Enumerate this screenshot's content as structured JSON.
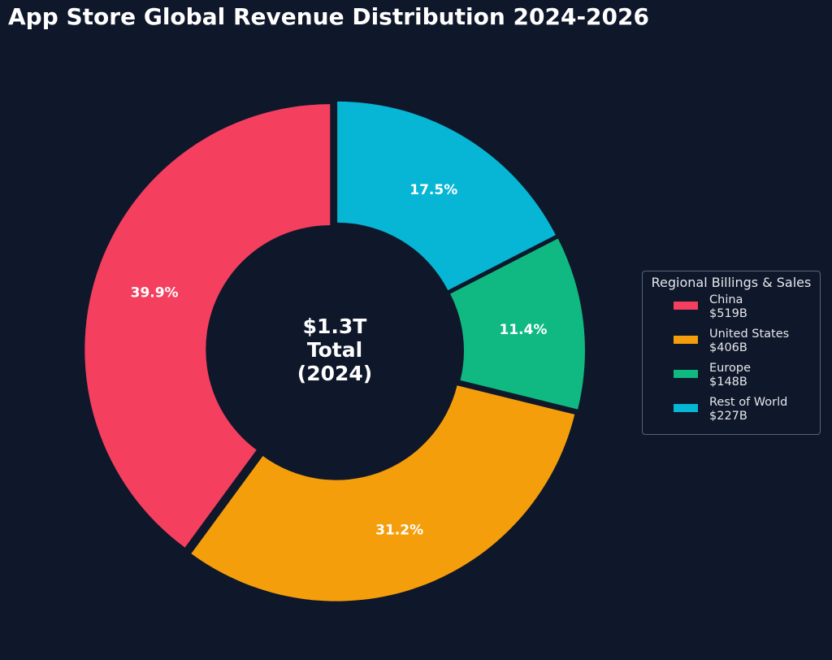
{
  "chart_data": {
    "type": "pie",
    "title": "App Store Global Revenue Distribution 2024-2026",
    "center_label": [
      "$1.3T",
      "Total",
      "(2024)"
    ],
    "legend": {
      "title": "Regional Billings & Sales",
      "placement": "right"
    },
    "slices": [
      {
        "label": "China",
        "value_label": "$519B",
        "value": 519,
        "percent_label": "39.9%",
        "color": "#f43f5e"
      },
      {
        "label": "United States",
        "value_label": "$406B",
        "value": 406,
        "percent_label": "31.2%",
        "color": "#f59e0b"
      },
      {
        "label": "Europe",
        "value_label": "$148B",
        "value": 148,
        "percent_label": "11.4%",
        "color": "#10b981"
      },
      {
        "label": "Rest of World",
        "value_label": "$227B",
        "value": 227,
        "percent_label": "17.5%",
        "color": "#06b6d4"
      }
    ]
  }
}
